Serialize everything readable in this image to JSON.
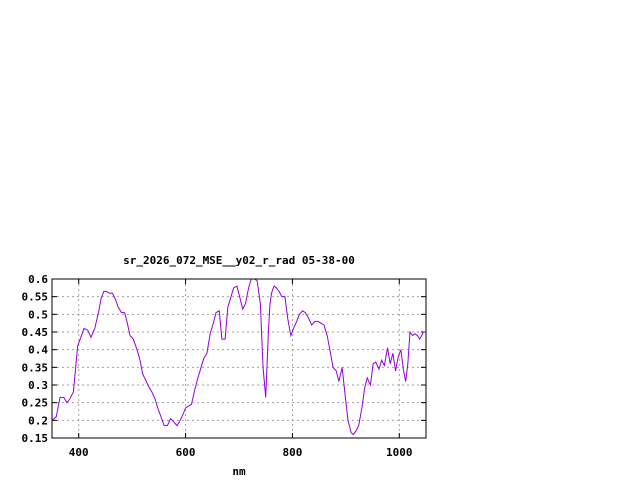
{
  "chart_data": {
    "type": "line",
    "title": "sr_2026_072_MSE__y02_r_rad 05-38-00",
    "xlabel": "nm",
    "ylabel": "",
    "xlim": [
      350,
      1050
    ],
    "ylim": [
      0.15,
      0.6
    ],
    "xticks": [
      400,
      600,
      800,
      1000
    ],
    "xtick_labels": [
      "400",
      "600",
      "800",
      "1000"
    ],
    "yticks": [
      0.15,
      0.2,
      0.25,
      0.3,
      0.35,
      0.4,
      0.45,
      0.5,
      0.55,
      0.6
    ],
    "ytick_labels": [
      "0.15",
      "0.2",
      "0.25",
      "0.3",
      "0.35",
      "0.4",
      "0.45",
      "0.5",
      "0.55",
      "0.6"
    ],
    "grid": true,
    "line_color": "#9400d3",
    "series": [
      {
        "x": [
          350,
          358,
          365,
          372,
          378,
          383,
          390,
          398,
          404,
          410,
          417,
          423,
          430,
          437,
          442,
          447,
          452,
          457,
          463,
          468,
          474,
          480,
          486,
          491,
          496,
          502,
          508,
          514,
          520,
          525,
          531,
          537,
          543,
          549,
          554,
          560,
          566,
          572,
          578,
          584,
          590,
          596,
          600,
          605,
          611,
          617,
          623,
          629,
          634,
          640,
          646,
          652,
          657,
          663,
          668,
          674,
          679,
          685,
          690,
          696,
          702,
          707,
          712,
          718,
          723,
          729,
          734,
          740,
          745,
          750,
          755,
          758,
          761,
          763,
          766,
          770,
          775,
          780,
          786,
          791,
          797,
          802,
          808,
          813,
          819,
          824,
          830,
          836,
          842,
          848,
          853,
          859,
          865,
          870,
          876,
          882,
          887,
          893,
          898,
          904,
          910,
          914,
          919,
          924,
          930,
          935,
          940,
          946,
          951,
          956,
          962,
          967,
          972,
          978,
          983,
          988,
          993,
          998,
          1003,
          1008,
          1012,
          1016,
          1020,
          1025,
          1029,
          1034,
          1038,
          1042,
          1045,
          1048,
          1050
        ],
        "y": [
          0.2,
          0.21,
          0.265,
          0.265,
          0.25,
          0.26,
          0.28,
          0.41,
          0.435,
          0.46,
          0.455,
          0.435,
          0.46,
          0.505,
          0.545,
          0.565,
          0.565,
          0.56,
          0.56,
          0.545,
          0.52,
          0.505,
          0.505,
          0.475,
          0.44,
          0.43,
          0.405,
          0.375,
          0.33,
          0.315,
          0.295,
          0.28,
          0.26,
          0.23,
          0.21,
          0.185,
          0.185,
          0.205,
          0.195,
          0.185,
          0.2,
          0.22,
          0.235,
          0.24,
          0.245,
          0.285,
          0.32,
          0.35,
          0.375,
          0.39,
          0.445,
          0.475,
          0.505,
          0.51,
          0.43,
          0.43,
          0.52,
          0.55,
          0.575,
          0.58,
          0.545,
          0.515,
          0.53,
          0.575,
          0.6,
          0.6,
          0.595,
          0.53,
          0.35,
          0.265,
          0.45,
          0.53,
          0.56,
          0.57,
          0.58,
          0.575,
          0.565,
          0.55,
          0.55,
          0.49,
          0.44,
          0.46,
          0.48,
          0.5,
          0.51,
          0.505,
          0.49,
          0.47,
          0.48,
          0.48,
          0.475,
          0.47,
          0.44,
          0.4,
          0.35,
          0.34,
          0.31,
          0.35,
          0.28,
          0.2,
          0.165,
          0.16,
          0.17,
          0.185,
          0.235,
          0.29,
          0.32,
          0.3,
          0.36,
          0.365,
          0.345,
          0.37,
          0.355,
          0.405,
          0.36,
          0.39,
          0.34,
          0.38,
          0.4,
          0.34,
          0.31,
          0.36,
          0.45,
          0.44,
          0.445,
          0.44,
          0.43,
          0.44,
          0.45,
          0.45,
          0.45
        ]
      }
    ]
  }
}
